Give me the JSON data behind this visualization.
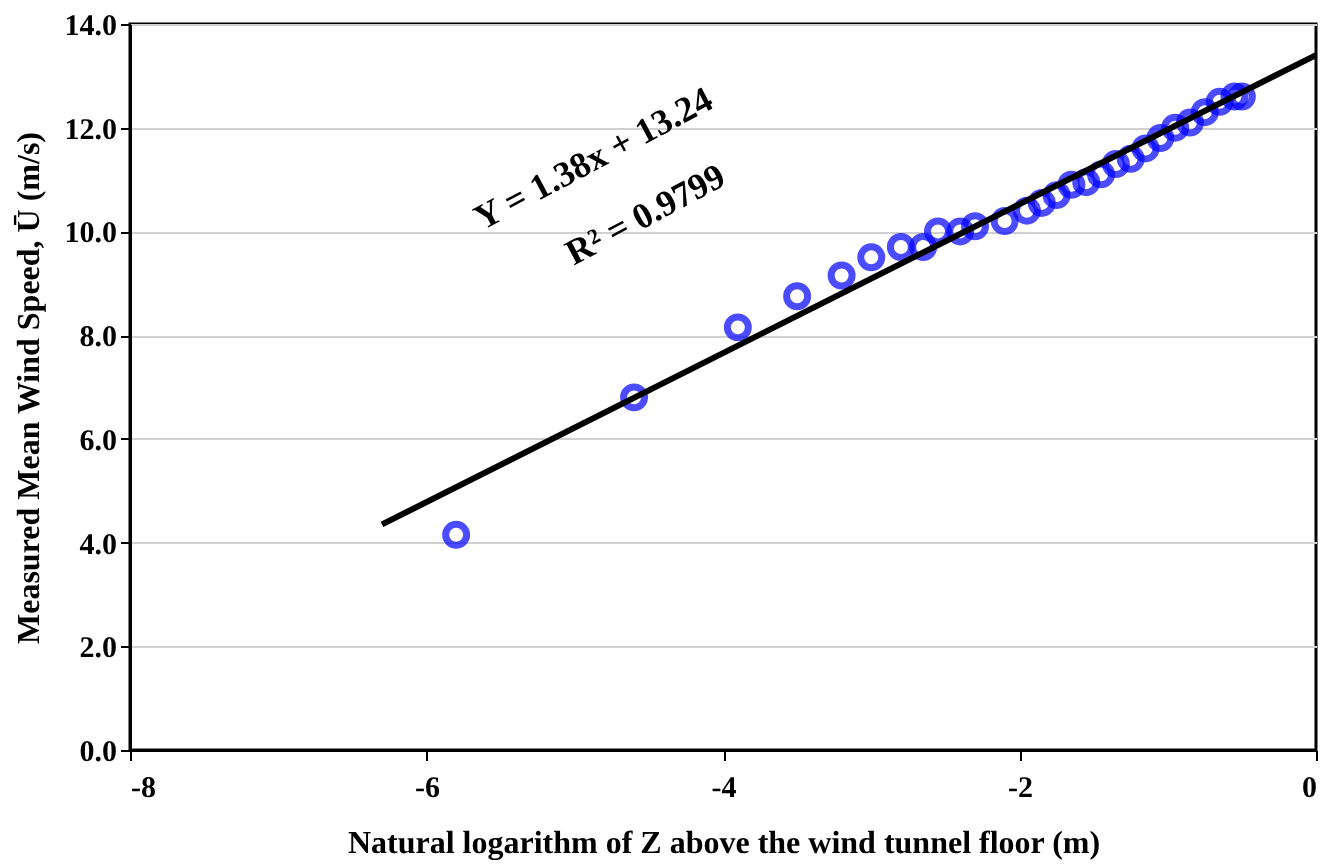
{
  "chart_data": {
    "type": "scatter",
    "xlabel": "Natural logarithm of Z above the wind tunnel floor (m)",
    "ylabel": "Measured Mean Wind Speed, Ū (m/s)",
    "xlim": [
      -8,
      0
    ],
    "xticks": [
      -8,
      -6,
      -4,
      -2,
      0
    ],
    "ylim": [
      0,
      14
    ],
    "yticks": [
      {
        "value": 0,
        "label": "0.0"
      },
      {
        "value": 2,
        "label": "2.0"
      },
      {
        "value": 4,
        "label": "4.0"
      },
      {
        "value": 6,
        "label": "6.0"
      },
      {
        "value": 8,
        "label": "8.0"
      },
      {
        "value": 10,
        "label": "10.0"
      },
      {
        "value": 12,
        "label": "12.0"
      },
      {
        "value": 14,
        "label": "14.0"
      }
    ],
    "grid": "y",
    "series": [
      {
        "marker": "circle",
        "color": "#0000ff",
        "x": [
          -5.8,
          -4.6,
          -3.9,
          -3.5,
          -3.2,
          -3.0,
          -2.8,
          -2.65,
          -2.55,
          -2.4,
          -2.3,
          -2.1,
          -1.95,
          -1.85,
          -1.75,
          -1.65,
          -1.55,
          -1.45,
          -1.35,
          -1.25,
          -1.15,
          -1.05,
          -0.95,
          -0.85,
          -0.75,
          -0.65,
          -0.55,
          -0.5
        ],
        "values": [
          4.15,
          6.8,
          8.15,
          8.75,
          9.15,
          9.5,
          9.7,
          9.7,
          10.0,
          10.0,
          10.1,
          10.2,
          10.4,
          10.55,
          10.7,
          10.9,
          10.95,
          11.1,
          11.3,
          11.4,
          11.6,
          11.8,
          12.0,
          12.1,
          12.3,
          12.5,
          12.6,
          12.6
        ]
      },
      {
        "type": "line",
        "color": "#000000",
        "x": [
          -6.3,
          0
        ],
        "values": [
          4.35,
          13.4
        ]
      }
    ],
    "annotations": [
      "Y = 1.38x + 13.24",
      "R² = 0.9799"
    ]
  }
}
